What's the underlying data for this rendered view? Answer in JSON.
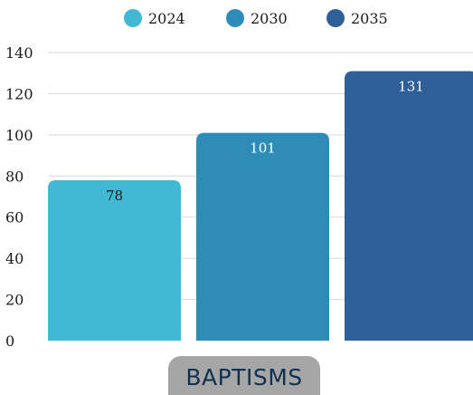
{
  "chart_data": {
    "type": "bar",
    "categories": [
      "BAPTISMS"
    ],
    "series": [
      {
        "name": "2024",
        "values": [
          78
        ],
        "color": "#42b8d5"
      },
      {
        "name": "2030",
        "values": [
          101
        ],
        "color": "#2e8cb8"
      },
      {
        "name": "2035",
        "values": [
          131
        ],
        "color": "#2e5f98"
      }
    ],
    "ylim": [
      0,
      140
    ],
    "yticks": [
      0,
      20,
      40,
      60,
      80,
      100,
      120,
      140
    ],
    "grid": true,
    "legend_position": "top-center",
    "data_label_colors": [
      "#1a1a1a",
      "#ffffff",
      "#ffffff"
    ]
  }
}
